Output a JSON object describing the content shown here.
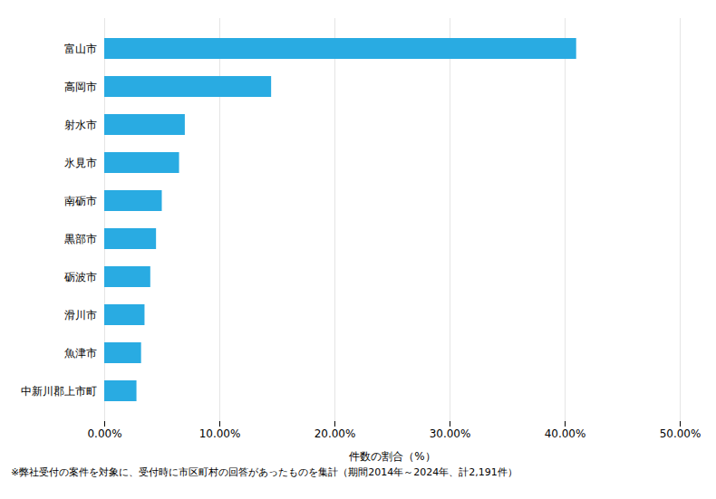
{
  "chart_data": {
    "type": "bar",
    "orientation": "horizontal",
    "categories": [
      "富山市",
      "高岡市",
      "射水市",
      "氷見市",
      "南砺市",
      "黒部市",
      "砺波市",
      "滑川市",
      "魚津市",
      "中新川郡上市町"
    ],
    "values": [
      41.0,
      14.5,
      7.0,
      6.5,
      5.0,
      4.5,
      4.0,
      3.5,
      3.2,
      2.8
    ],
    "color": "#29ABE2",
    "xlabel": "件数の割合（%）",
    "xlim": [
      0,
      50
    ],
    "xticks": [
      {
        "value": 0,
        "label": "0.00%"
      },
      {
        "value": 10,
        "label": "10.00%"
      },
      {
        "value": 20,
        "label": "20.00%"
      },
      {
        "value": 30,
        "label": "30.00%"
      },
      {
        "value": 40,
        "label": "40.00%"
      },
      {
        "value": 50,
        "label": "50.00%"
      }
    ],
    "grid": true,
    "footnote": "※弊社受付の案件を対象に、受付時に市区町村の回答があったものを集計（期間2014年～2024年、計2,191件）"
  }
}
